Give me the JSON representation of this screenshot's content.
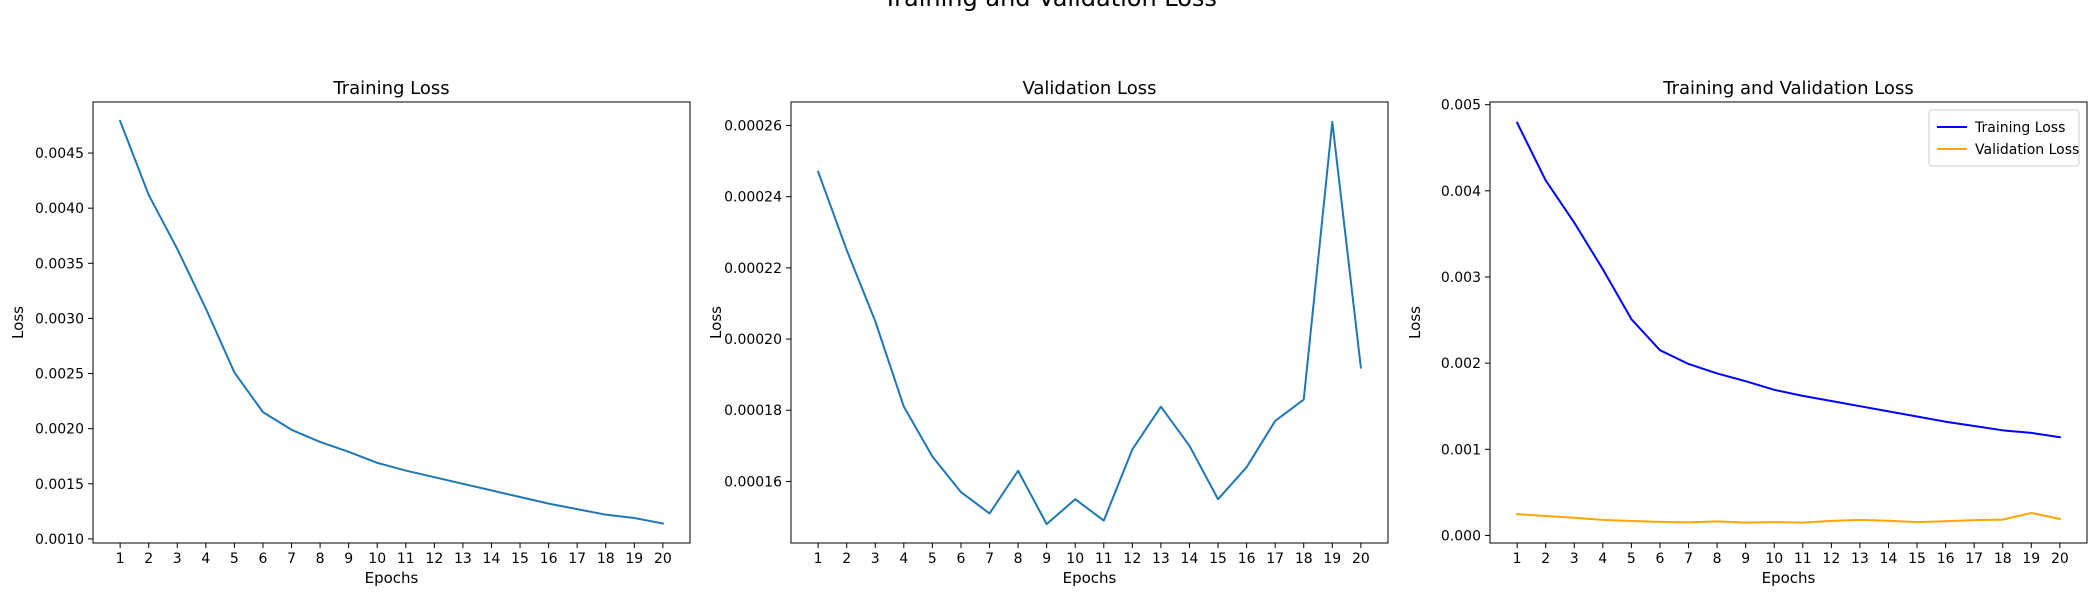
{
  "figure": {
    "suptitle": "Training and Validation Loss"
  },
  "chart_data": [
    {
      "type": "line",
      "title": "Training Loss",
      "xlabel": "Epochs",
      "ylabel": "Loss",
      "x": [
        1,
        2,
        3,
        4,
        5,
        6,
        7,
        8,
        9,
        10,
        11,
        12,
        13,
        14,
        15,
        16,
        17,
        18,
        19,
        20
      ],
      "xticks": [
        1,
        2,
        3,
        4,
        5,
        6,
        7,
        8,
        9,
        10,
        11,
        12,
        13,
        14,
        15,
        16,
        17,
        18,
        19,
        20
      ],
      "xlim": [
        0.05,
        20.95
      ],
      "ylim": [
        0.000963,
        0.004963
      ],
      "yticks": [
        "0.0010",
        "0.0015",
        "0.0020",
        "0.0025",
        "0.0030",
        "0.0035",
        "0.0040",
        "0.0045"
      ],
      "yticks_values": [
        0.001,
        0.0015,
        0.002,
        0.0025,
        0.003,
        0.0035,
        0.004,
        0.0045
      ],
      "grid": false,
      "legend": null,
      "series": [
        {
          "color": "#1f77b4",
          "values": [
            0.00479,
            0.00412,
            0.00363,
            0.00309,
            0.00251,
            0.00215,
            0.00199,
            0.00188,
            0.00179,
            0.00169,
            0.00162,
            0.00156,
            0.0015,
            0.00144,
            0.00138,
            0.00132,
            0.00127,
            0.00122,
            0.00119,
            0.00114
          ]
        }
      ]
    },
    {
      "type": "line",
      "title": "Validation Loss",
      "xlabel": "Epochs",
      "ylabel": "Loss",
      "x": [
        1,
        2,
        3,
        4,
        5,
        6,
        7,
        8,
        9,
        10,
        11,
        12,
        13,
        14,
        15,
        16,
        17,
        18,
        19,
        20
      ],
      "xticks": [
        1,
        2,
        3,
        4,
        5,
        6,
        7,
        8,
        9,
        10,
        11,
        12,
        13,
        14,
        15,
        16,
        17,
        18,
        19,
        20
      ],
      "xlim": [
        0.05,
        20.95
      ],
      "ylim": [
        0.0001427,
        0.0002666
      ],
      "yticks": [
        "0.00016",
        "0.00018",
        "0.00020",
        "0.00022",
        "0.00024",
        "0.00026"
      ],
      "yticks_values": [
        0.00016,
        0.00018,
        0.0002,
        0.00022,
        0.00024,
        0.00026
      ],
      "grid": false,
      "legend": null,
      "series": [
        {
          "color": "#1f77b4",
          "values": [
            0.000247,
            0.000225,
            0.000205,
            0.000181,
            0.000167,
            0.000157,
            0.000151,
            0.000163,
            0.000148,
            0.000155,
            0.000149,
            0.000169,
            0.000181,
            0.00017,
            0.000155,
            0.000164,
            0.000177,
            0.000183,
            0.000261,
            0.000192
          ]
        }
      ]
    },
    {
      "type": "line",
      "title": "Training and Validation Loss",
      "xlabel": "Epochs",
      "ylabel": "Loss",
      "x": [
        1,
        2,
        3,
        4,
        5,
        6,
        7,
        8,
        9,
        10,
        11,
        12,
        13,
        14,
        15,
        16,
        17,
        18,
        19,
        20
      ],
      "xticks": [
        1,
        2,
        3,
        4,
        5,
        6,
        7,
        8,
        9,
        10,
        11,
        12,
        13,
        14,
        15,
        16,
        17,
        18,
        19,
        20
      ],
      "xlim": [
        0.05,
        20.95
      ],
      "ylim": [
        -8.8e-05,
        0.005031
      ],
      "yticks": [
        "0.000",
        "0.001",
        "0.002",
        "0.003",
        "0.004",
        "0.005"
      ],
      "yticks_values": [
        0,
        0.001,
        0.002,
        0.003,
        0.004,
        0.005
      ],
      "grid": false,
      "legend": "top-right",
      "series": [
        {
          "name": "Training Loss",
          "color": "#0000ff",
          "values": [
            0.00479,
            0.00412,
            0.00363,
            0.00309,
            0.00251,
            0.00215,
            0.00199,
            0.00188,
            0.00179,
            0.00169,
            0.00162,
            0.00156,
            0.0015,
            0.00144,
            0.00138,
            0.00132,
            0.00127,
            0.00122,
            0.00119,
            0.00114
          ]
        },
        {
          "name": "Validation Loss",
          "color": "#ffa500",
          "values": [
            0.000247,
            0.000225,
            0.000205,
            0.000181,
            0.000167,
            0.000157,
            0.000151,
            0.000163,
            0.000148,
            0.000155,
            0.000149,
            0.000169,
            0.000181,
            0.00017,
            0.000155,
            0.000164,
            0.000177,
            0.000183,
            0.000261,
            0.000192
          ]
        }
      ]
    }
  ]
}
